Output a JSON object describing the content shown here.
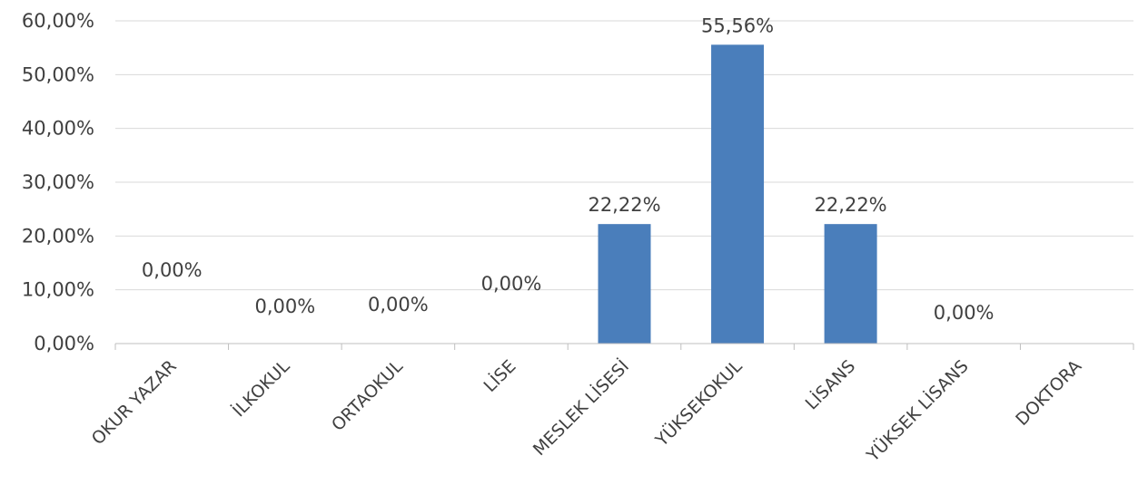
{
  "chart_data": {
    "type": "bar",
    "categories": [
      "OKUR YAZAR",
      "İLKOKUL",
      "ORTAOKUL",
      "LİSE",
      "MESLEK LİSESİ",
      "YÜKSEKOKUL",
      "LİSANS",
      "YÜKSEK LİSANS",
      "DOKTORA"
    ],
    "values": [
      0,
      0,
      0,
      0,
      22.22,
      55.56,
      22.22,
      0,
      0
    ],
    "data_labels": [
      "0,00%",
      "0,00%",
      "0,00%",
      "0,00%",
      "22,22%",
      "55,56%",
      "22,22%",
      "0,00%",
      ""
    ],
    "y_ticks": [
      "0,00%",
      "10,00%",
      "20,00%",
      "30,00%",
      "40,00%",
      "50,00%",
      "60,00%"
    ],
    "ylim": [
      0,
      60
    ],
    "grid": true,
    "legend": "none",
    "bar_color": "#4a7ebb"
  }
}
